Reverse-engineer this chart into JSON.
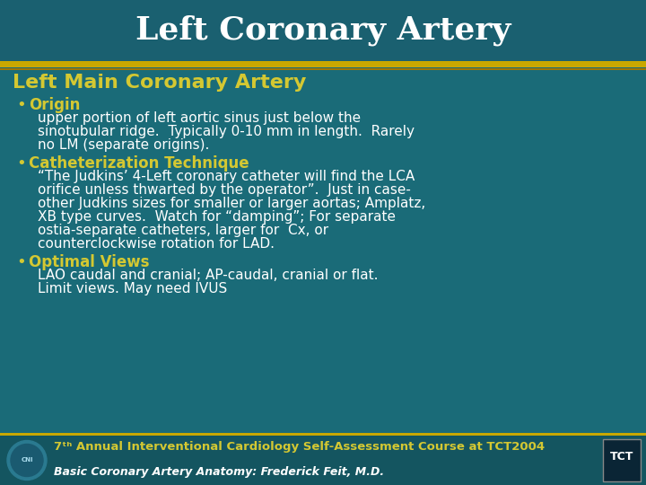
{
  "title": "Left Coronary Artery",
  "title_color": "#FFFFFF",
  "title_bg_color": "#1a6070",
  "title_font_size": 26,
  "subtitle": "Left Main Coronary Artery",
  "subtitle_color": "#d4c832",
  "subtitle_font_size": 16,
  "bg_color": "#1a6b78",
  "gold_line_color": "#c8a800",
  "gold_line2_color": "#a07800",
  "bullet_color": "#d4c832",
  "bullet_label_color": "#d4c832",
  "body_text_color": "#FFFFFF",
  "bullet_font_size": 12,
  "body_font_size": 11,
  "bullets": [
    {
      "label": "Origin",
      "text": "upper portion of left aortic sinus just below the\nsinotubular ridge.  Typically 0-10 mm in length.  Rarely\nno LM (separate origins)."
    },
    {
      "label": "Catheterization Technique",
      "text": "“The Judkins’ 4-Left coronary catheter will find the LCA\norifice unless thwarted by the operator”.  Just in case-\nother Judkins sizes for smaller or larger aortas; Amplatz,\nXB type curves.  Watch for “damping”; For separate\nostia-separate catheters, larger for  Cx, or\ncounterclockwise rotation for LAD."
    },
    {
      "label": "Optimal Views",
      "text": "LAO caudal and cranial; AP-caudal, cranial or flat.\nLimit views. May need IVUS"
    }
  ],
  "footer_bg_color": "#145560",
  "footer_gold_text": "7ᵗʰ Annual Interventional Cardiology Self-Assessment Course at TCT2004",
  "footer_gold_color": "#d4c832",
  "footer_white_text": "Basic Coronary Artery Anatomy: Frederick Feit, M.D.",
  "footer_white_color": "#FFFFFF",
  "footer_font_size": 9.5,
  "footer_font_size2": 9
}
